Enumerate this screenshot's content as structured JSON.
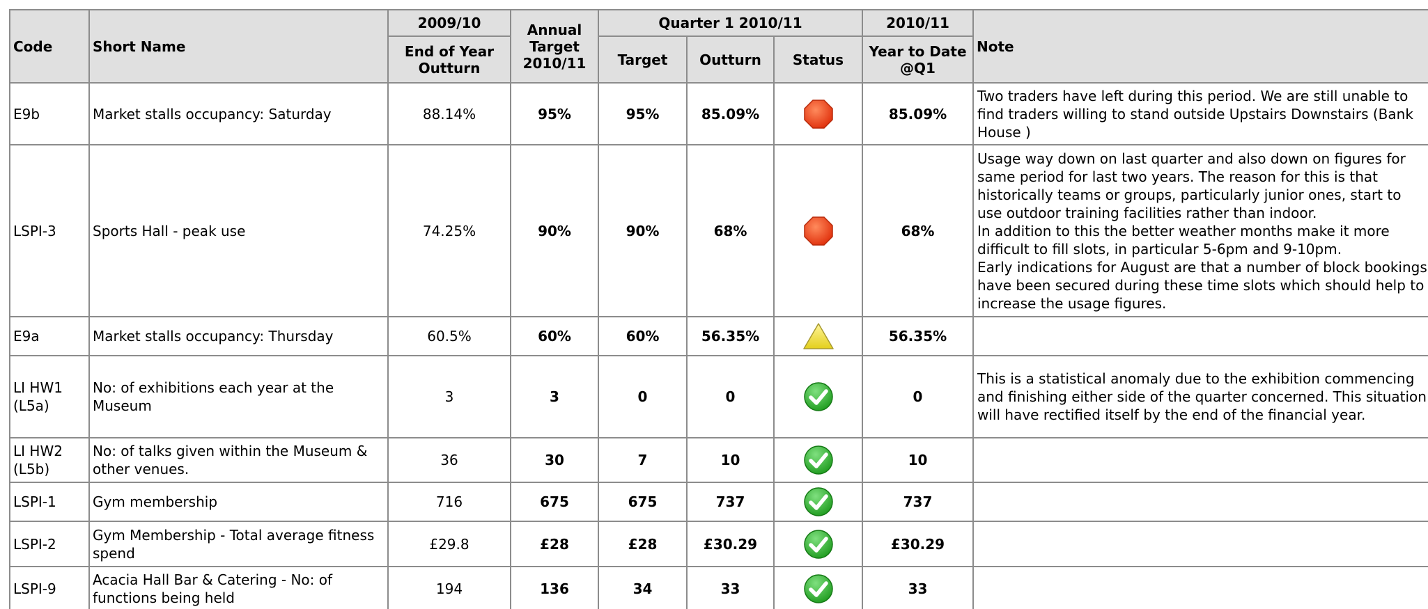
{
  "table": {
    "header_top": [
      "Code",
      "Short Name",
      "2009/10",
      "Annual Target 2010/11",
      "Quarter 1 2010/11",
      "2010/11",
      "Note"
    ],
    "header_sub": [
      "End of Year Outturn",
      "Target",
      "Outturn",
      "Status",
      "Year to Date @Q1"
    ],
    "rows": [
      [
        "E9b",
        "Market stalls occupancy: Saturday",
        "88.14%",
        "95%",
        "95%",
        "85.09%",
        "85.09%",
        "Two traders have left during this period. We are still unable to find traders willing to stand outside Upstairs Downstairs (Bank House )"
      ],
      [
        "LSPI-3",
        "Sports Hall - peak use",
        "74.25%",
        "90%",
        "90%",
        "68%",
        "68%",
        "Usage way down on last quarter and also down on figures for same period for last two years. The reason for this is that historically teams or groups, particularly junior ones, start to use outdoor training facilities rather than indoor.\nIn addition to this the better weather months make it more difficult to fill slots, in particular 5-6pm and 9-10pm.\nEarly indications for August are that a number of block bookings have been secured during these time slots which should help to increase the usage figures."
      ],
      [
        "E9a",
        "Market stalls occupancy: Thursday",
        "60.5%",
        "60%",
        "60%",
        "56.35%",
        "56.35%"
      ],
      [
        "LI HW1 (L5a)",
        "No: of exhibitions each year at the Museum",
        "3",
        "3",
        "0",
        "0",
        "0",
        "This is a statistical anomaly due to the exhibition commencing and finishing either side of the quarter concerned. This situation will have rectified itself by the end of the financial year."
      ],
      [
        "LI HW2 (L5b)",
        "No: of talks given within the Museum & other venues.",
        "36",
        "30",
        "7",
        "10",
        "10"
      ],
      [
        "LSPI-1",
        "Gym membership",
        "716",
        "675",
        "675",
        "737",
        "737"
      ],
      [
        "LSPI-2",
        "Gym Membership - Total average fitness spend",
        "£29.8",
        "£28",
        "£28",
        "£30.29",
        "£30.29"
      ],
      [
        "LSPI-9",
        "Acacia Hall Bar & Catering - No: of functions being held",
        "194",
        "136",
        "34",
        "33",
        "33"
      ]
    ]
  }
}
